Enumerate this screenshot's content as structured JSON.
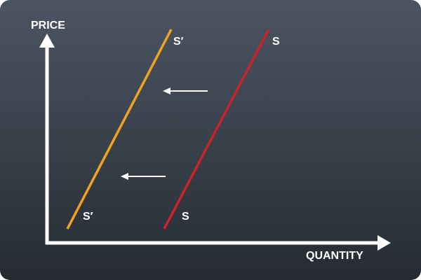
{
  "axes": {
    "y_label": "PRICE",
    "x_label": "QUANTITY",
    "color": "#ffffff"
  },
  "curves": [
    {
      "id": "supply-original",
      "top_label": "S",
      "bottom_label": "S",
      "color": "#cc2229"
    },
    {
      "id": "supply-shifted",
      "top_label": "S′",
      "bottom_label": "S′",
      "color": "#f2a21e"
    }
  ],
  "shift": {
    "direction": "left",
    "arrow_count": 2,
    "color": "#ffffff"
  }
}
